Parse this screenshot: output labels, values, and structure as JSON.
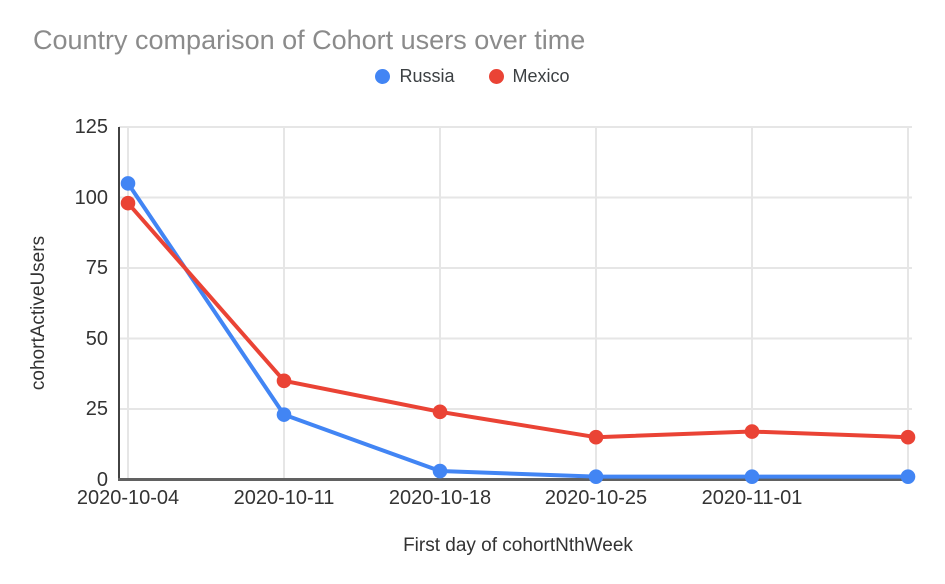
{
  "chart_data": {
    "type": "line",
    "title": "Country comparison of Cohort users over time",
    "xlabel": "First day of cohortNthWeek",
    "ylabel": "cohortActiveUsers",
    "x_tick_labels": [
      "2020-10-04",
      "2020-10-11",
      "2020-10-18",
      "2020-10-25",
      "2020-11-01",
      ""
    ],
    "y_ticks": [
      0,
      25,
      50,
      75,
      100,
      125
    ],
    "ylim": [
      0,
      125
    ],
    "grid": true,
    "legend_position": "top-center",
    "series": [
      {
        "name": "Russia",
        "color": "#4285F4",
        "values": [
          105,
          23,
          3,
          1,
          1,
          1
        ]
      },
      {
        "name": "Mexico",
        "color": "#EA4335",
        "values": [
          98,
          35,
          24,
          15,
          17,
          15
        ]
      }
    ],
    "colors": {
      "background": "#ffffff",
      "grid": "#e6e6e6",
      "y_axis_line": "#424242",
      "x_axis_line": "#616161",
      "title_text": "#8b8b8b",
      "axis_text": "#333333",
      "legend_text": "#3c4043"
    }
  }
}
